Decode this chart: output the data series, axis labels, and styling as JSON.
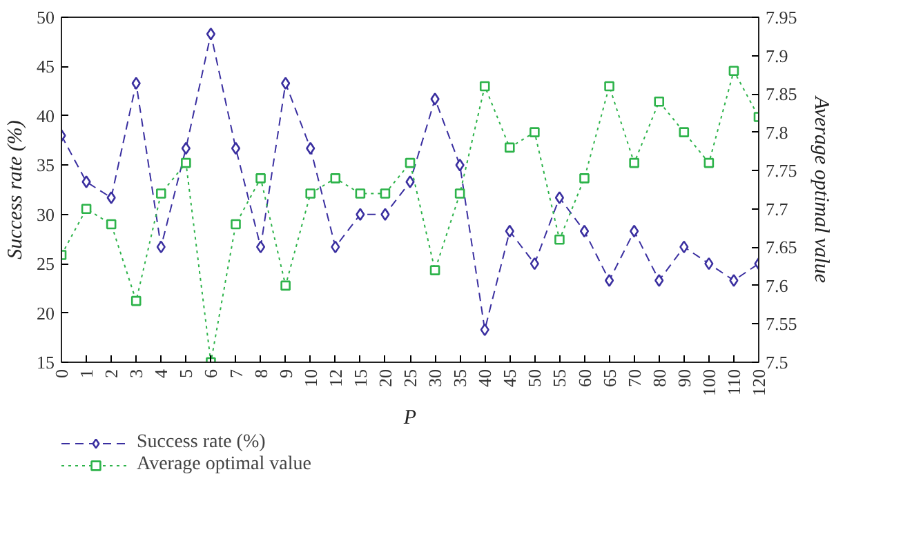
{
  "chart_data": {
    "type": "line",
    "xlabel": "P",
    "ylabel": "Success rate (%)",
    "y2label": "Average optimal value",
    "categories": [
      "0",
      "1",
      "2",
      "3",
      "4",
      "5",
      "6",
      "7",
      "8",
      "9",
      "10",
      "12",
      "15",
      "20",
      "25",
      "30",
      "35",
      "40",
      "45",
      "50",
      "55",
      "60",
      "65",
      "70",
      "80",
      "90",
      "100",
      "110",
      "120"
    ],
    "series": [
      {
        "name": "Success rate (%)",
        "color": "#3a2fa0",
        "marker": "diamond",
        "line_style": "dashed",
        "values": [
          38,
          33.3,
          31.7,
          43.3,
          26.7,
          36.7,
          48.3,
          36.7,
          26.7,
          43.3,
          36.7,
          26.7,
          30,
          30,
          33.3,
          41.7,
          35,
          18.3,
          28.3,
          25,
          31.7,
          28.3,
          23.3,
          28.3,
          23.3,
          26.7,
          25,
          23.3,
          25
        ]
      },
      {
        "name": "Average optimal value",
        "color": "#2db34a",
        "marker": "square",
        "line_style": "dotted",
        "axis": "y2",
        "values": [
          7.64,
          7.7,
          7.68,
          7.58,
          7.72,
          7.76,
          7.5,
          7.68,
          7.74,
          7.6,
          7.72,
          7.74,
          7.72,
          7.72,
          7.76,
          7.62,
          7.72,
          7.86,
          7.78,
          7.8,
          7.66,
          7.74,
          7.86,
          7.76,
          7.84,
          7.8,
          7.76,
          7.88,
          7.82
        ]
      }
    ],
    "ylim": [
      15,
      50
    ],
    "yticks": [
      15,
      20,
      25,
      30,
      35,
      40,
      45,
      50
    ],
    "y2lim": [
      7.5,
      7.95
    ],
    "y2ticks": [
      7.5,
      7.55,
      7.6,
      7.65,
      7.7,
      7.75,
      7.8,
      7.85,
      7.9,
      7.95
    ],
    "grid": false,
    "legend": "bottom left"
  }
}
